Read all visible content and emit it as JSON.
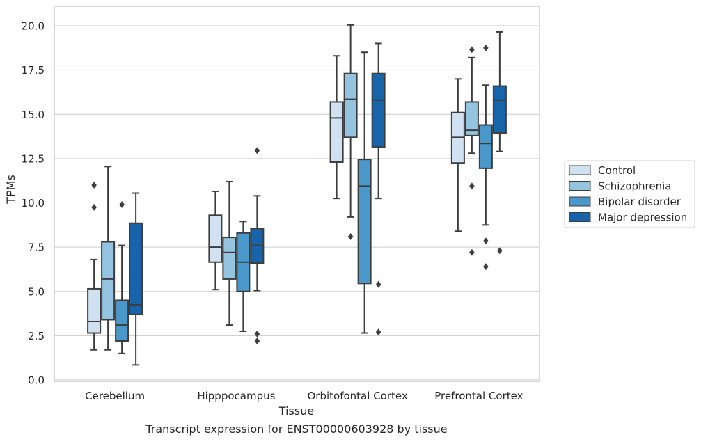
{
  "chart_data": {
    "type": "box",
    "title": "",
    "caption": "Transcript expression for ENST00000603928 by tissue",
    "xlabel": "Tissue",
    "ylabel": "TPMs",
    "ylim": [
      -0.1,
      21.0
    ],
    "yticks": [
      0.0,
      2.5,
      5.0,
      7.5,
      10.0,
      12.5,
      15.0,
      17.5,
      20.0
    ],
    "ytick_labels": [
      "0.0",
      "2.5",
      "5.0",
      "7.5",
      "10.0",
      "12.5",
      "15.0",
      "17.5",
      "20.0"
    ],
    "grid": "horizontal",
    "legend_position": "right",
    "categories": [
      "Cerebellum",
      "Hipppocampus",
      "Orbitofontal Cortex",
      "Prefrontal Cortex"
    ],
    "series": [
      {
        "name": "Control",
        "color": "#d0e1f2",
        "boxes": [
          {
            "whisker_low": 1.7,
            "q1": 2.65,
            "median": 3.3,
            "q3": 5.15,
            "whisker_high": 6.8,
            "outliers": [
              11.0,
              9.75
            ]
          },
          {
            "whisker_low": 5.1,
            "q1": 6.65,
            "median": 7.5,
            "q3": 9.3,
            "whisker_high": 10.65,
            "outliers": []
          },
          {
            "whisker_low": 10.25,
            "q1": 12.3,
            "median": 14.8,
            "q3": 15.7,
            "whisker_high": 18.3,
            "outliers": []
          },
          {
            "whisker_low": 8.4,
            "q1": 12.25,
            "median": 13.7,
            "q3": 15.1,
            "whisker_high": 17.0,
            "outliers": []
          }
        ]
      },
      {
        "name": "Schizophrenia",
        "color": "#94c4df",
        "boxes": [
          {
            "whisker_low": 1.7,
            "q1": 3.4,
            "median": 5.7,
            "q3": 7.8,
            "whisker_high": 12.05,
            "outliers": []
          },
          {
            "whisker_low": 3.1,
            "q1": 5.7,
            "median": 7.2,
            "q3": 8.05,
            "whisker_high": 11.2,
            "outliers": []
          },
          {
            "whisker_low": 9.2,
            "q1": 13.7,
            "median": 15.85,
            "q3": 17.3,
            "whisker_high": 20.05,
            "outliers": [
              8.1
            ]
          },
          {
            "whisker_low": 12.8,
            "q1": 13.8,
            "median": 14.1,
            "q3": 15.7,
            "whisker_high": 18.2,
            "outliers": [
              18.65,
              10.95,
              7.2
            ]
          }
        ]
      },
      {
        "name": "Bipolar disorder",
        "color": "#4a98c9",
        "boxes": [
          {
            "whisker_low": 1.5,
            "q1": 2.2,
            "median": 3.1,
            "q3": 4.5,
            "whisker_high": 7.6,
            "outliers": [
              9.9
            ]
          },
          {
            "whisker_low": 2.75,
            "q1": 5.0,
            "median": 6.65,
            "q3": 8.3,
            "whisker_high": 8.95,
            "outliers": []
          },
          {
            "whisker_low": 2.65,
            "q1": 5.45,
            "median": 10.95,
            "q3": 12.45,
            "whisker_high": 18.5,
            "outliers": []
          },
          {
            "whisker_low": 8.75,
            "q1": 11.95,
            "median": 13.35,
            "q3": 14.4,
            "whisker_high": 16.65,
            "outliers": [
              18.75,
              7.85,
              6.4
            ]
          }
        ]
      },
      {
        "name": "Major depression",
        "color": "#1764ab",
        "boxes": [
          {
            "whisker_low": 0.85,
            "q1": 3.7,
            "median": 4.25,
            "q3": 8.85,
            "whisker_high": 10.55,
            "outliers": []
          },
          {
            "whisker_low": 5.05,
            "q1": 6.6,
            "median": 7.6,
            "q3": 8.55,
            "whisker_high": 10.4,
            "outliers": [
              12.95,
              2.6,
              2.2
            ]
          },
          {
            "whisker_low": 10.25,
            "q1": 13.15,
            "median": 15.8,
            "q3": 17.3,
            "whisker_high": 19.0,
            "outliers": [
              5.4,
              2.7
            ]
          },
          {
            "whisker_low": 12.9,
            "q1": 13.95,
            "median": 15.8,
            "q3": 16.6,
            "whisker_high": 19.65,
            "outliers": [
              7.3
            ]
          }
        ]
      }
    ]
  }
}
